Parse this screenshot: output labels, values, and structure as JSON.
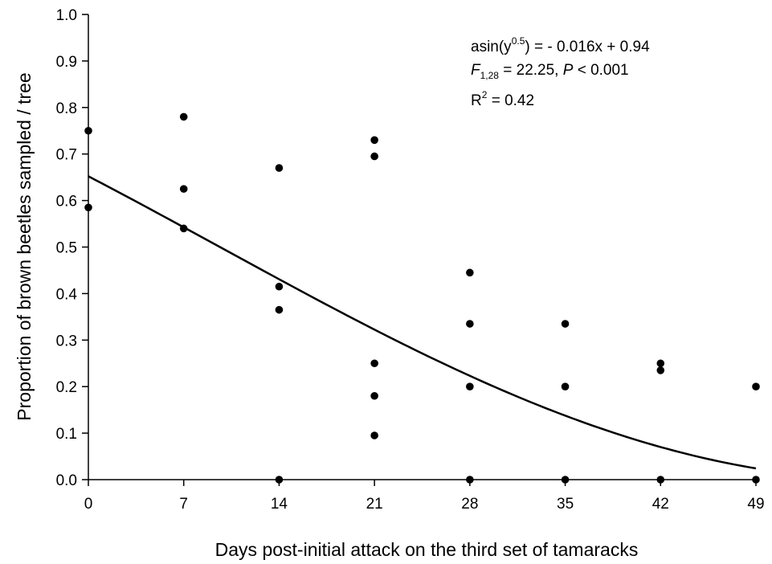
{
  "chart_data": {
    "type": "scatter",
    "title": "",
    "xlabel": "Days post-initial attack on the third set of tamaracks",
    "ylabel": "Proportion of brown beetles sampled / tree",
    "xlim": [
      0,
      49
    ],
    "ylim": [
      0,
      1.0
    ],
    "x_ticks": [
      0,
      7,
      14,
      21,
      28,
      35,
      42,
      49
    ],
    "y_ticks": [
      0.0,
      0.1,
      0.2,
      0.3,
      0.4,
      0.5,
      0.6,
      0.7,
      0.8,
      0.9,
      1.0
    ],
    "x_tick_labels": [
      "0",
      "7",
      "14",
      "21",
      "28",
      "35",
      "42",
      "49"
    ],
    "y_tick_labels": [
      "0.0",
      "0.1",
      "0.2",
      "0.3",
      "0.4",
      "0.5",
      "0.6",
      "0.7",
      "0.8",
      "0.9",
      "1.0"
    ],
    "grid": false,
    "legend": "none",
    "points": [
      {
        "x": 0,
        "y": 0.75
      },
      {
        "x": 0,
        "y": 0.585
      },
      {
        "x": 7,
        "y": 0.78
      },
      {
        "x": 7,
        "y": 0.625
      },
      {
        "x": 7,
        "y": 0.54
      },
      {
        "x": 14,
        "y": 0.67
      },
      {
        "x": 14,
        "y": 0.415
      },
      {
        "x": 14,
        "y": 0.365
      },
      {
        "x": 14,
        "y": 0.0
      },
      {
        "x": 21,
        "y": 0.73
      },
      {
        "x": 21,
        "y": 0.695
      },
      {
        "x": 21,
        "y": 0.25
      },
      {
        "x": 21,
        "y": 0.18
      },
      {
        "x": 21,
        "y": 0.095
      },
      {
        "x": 28,
        "y": 0.445
      },
      {
        "x": 28,
        "y": 0.335
      },
      {
        "x": 28,
        "y": 0.2
      },
      {
        "x": 28,
        "y": 0.0
      },
      {
        "x": 35,
        "y": 0.335
      },
      {
        "x": 35,
        "y": 0.2
      },
      {
        "x": 35,
        "y": 0.0
      },
      {
        "x": 42,
        "y": 0.25
      },
      {
        "x": 42,
        "y": 0.235
      },
      {
        "x": 42,
        "y": 0.0
      },
      {
        "x": 49,
        "y": 0.2
      },
      {
        "x": 49,
        "y": 0.0
      }
    ],
    "fit": {
      "slope": -0.016,
      "intercept": 0.94,
      "transform": "asin(sqrt(y))"
    },
    "annotations": {
      "equation": {
        "prefix": "asin(y",
        "sup": "0.5",
        "suffix": ") = - 0.016x + 0.94"
      },
      "stats": {
        "f_letter": "F",
        "f_sub": "1,28",
        "f_value": " = 22.25, ",
        "p_letter": "P",
        "p_value": " < 0.001"
      },
      "r2": {
        "prefix": "R",
        "sup": "2",
        "suffix": " = 0.42"
      }
    }
  }
}
